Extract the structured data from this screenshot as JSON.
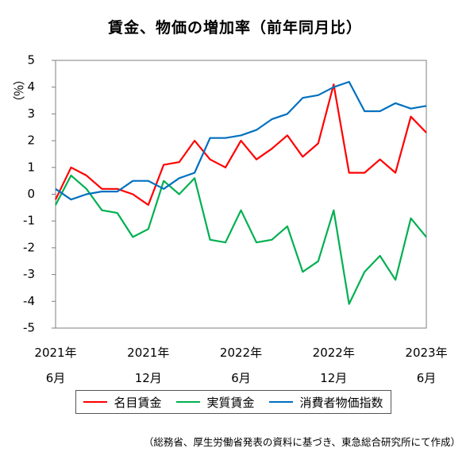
{
  "chart_data": {
    "type": "line",
    "title": "賃金、物価の増加率（前年同月比）",
    "ylabel": "（％）",
    "ylim": [
      -5,
      5
    ],
    "yticks": [
      5,
      4,
      3,
      2,
      1,
      0,
      -1,
      -2,
      -3,
      -4,
      -5
    ],
    "x": [
      "2021-06",
      "2021-07",
      "2021-08",
      "2021-09",
      "2021-10",
      "2021-11",
      "2021-12",
      "2022-01",
      "2022-02",
      "2022-03",
      "2022-04",
      "2022-05",
      "2022-06",
      "2022-07",
      "2022-08",
      "2022-09",
      "2022-10",
      "2022-11",
      "2022-12",
      "2023-01",
      "2023-02",
      "2023-03",
      "2023-04",
      "2023-05",
      "2023-06"
    ],
    "xtick_labels": [
      {
        "index": 0,
        "year": "2021年",
        "month": "6月"
      },
      {
        "index": 6,
        "year": "2021年",
        "month": "12月"
      },
      {
        "index": 12,
        "year": "2022年",
        "month": "6月"
      },
      {
        "index": 18,
        "year": "2022年",
        "month": "12月"
      },
      {
        "index": 24,
        "year": "2023年",
        "month": "6月"
      }
    ],
    "series": [
      {
        "name": "名目賃金",
        "color": "#ff0000",
        "values": [
          -0.2,
          1.0,
          0.7,
          0.2,
          0.2,
          0.0,
          -0.4,
          1.1,
          1.2,
          2.0,
          1.3,
          1.0,
          2.0,
          1.3,
          1.7,
          2.2,
          1.4,
          1.9,
          4.1,
          0.8,
          0.8,
          1.3,
          0.8,
          2.9,
          2.3
        ]
      },
      {
        "name": "実質賃金",
        "color": "#00b050",
        "values": [
          -0.4,
          0.7,
          0.2,
          -0.6,
          -0.7,
          -1.6,
          -1.3,
          0.5,
          0.0,
          0.6,
          -1.7,
          -1.8,
          -0.6,
          -1.8,
          -1.7,
          -1.2,
          -2.9,
          -2.5,
          -0.6,
          -4.1,
          -2.9,
          -2.3,
          -3.2,
          -0.9,
          -1.6
        ]
      },
      {
        "name": "消費者物価指数",
        "color": "#0070c0",
        "values": [
          0.2,
          -0.2,
          0.0,
          0.1,
          0.1,
          0.5,
          0.5,
          0.2,
          0.6,
          0.8,
          2.1,
          2.1,
          2.2,
          2.4,
          2.8,
          3.0,
          3.6,
          3.7,
          4.0,
          4.2,
          3.1,
          3.1,
          3.4,
          3.2,
          3.3
        ]
      }
    ],
    "legend_position": "bottom",
    "grid": false
  },
  "source_note": "（総務省、厚生労働省発表の資料に基づき、東急総合研究所にて作成）"
}
